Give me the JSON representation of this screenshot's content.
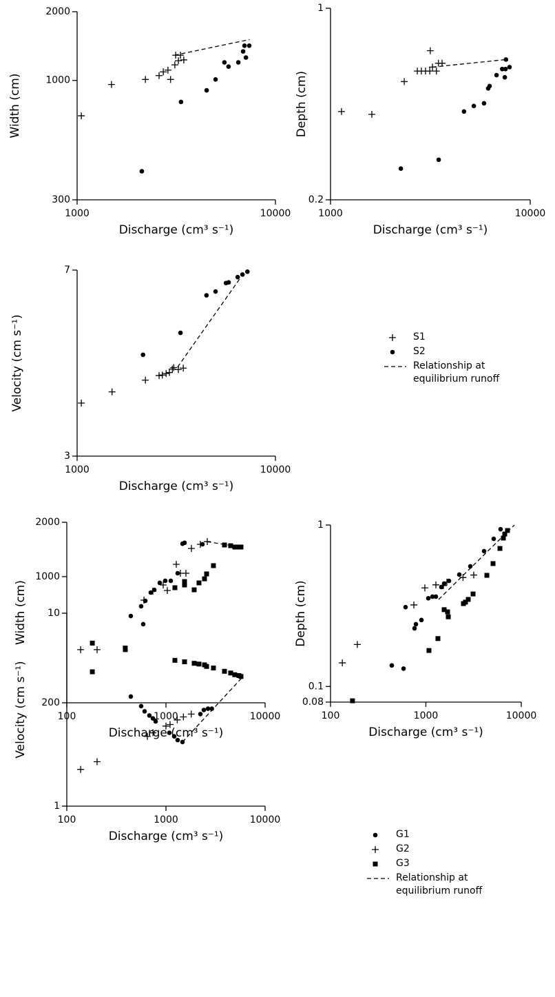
{
  "chart_data": [
    {
      "type": "scatter",
      "x_label": "Discharge (cm³ s⁻¹)",
      "y_label": "Width (cm)",
      "log_x": true,
      "log_y": true,
      "xlim": [
        1000,
        10000
      ],
      "xticks": [
        1000,
        10000
      ],
      "ylim": [
        300,
        2000
      ],
      "yticks": [
        300,
        1000,
        2000
      ],
      "series": [
        {
          "marker": "plus",
          "color": "#000000",
          "x": [
            1050,
            1490,
            2210,
            2590,
            2720,
            2870,
            2960,
            3110,
            3140,
            3240,
            3320,
            3450
          ],
          "values": [
            700,
            960,
            1010,
            1050,
            1090,
            1110,
            1010,
            1170,
            1290,
            1220,
            1290,
            1230
          ]
        },
        {
          "marker": "circle",
          "color": "#000000",
          "x": [
            2120,
            3340,
            4500,
            4990,
            5530,
            5800,
            6500,
            6870,
            6980,
            7100,
            7380
          ],
          "values": [
            400,
            805,
            905,
            1010,
            1200,
            1150,
            1200,
            1340,
            1420,
            1260,
            1420
          ]
        },
        {
          "style": "dashed",
          "color": "#000000",
          "x": [
            3100,
            7400
          ],
          "values": [
            1290,
            1510
          ]
        }
      ]
    },
    {
      "type": "scatter",
      "x_label": "Discharge (cm³ s⁻¹)",
      "y_label": "Depth (cm)",
      "log_x": true,
      "log_y": true,
      "xlim": [
        1000,
        10000
      ],
      "xticks": [
        1000,
        10000
      ],
      "ylim": [
        0.2,
        1
      ],
      "yticks": [
        0.2,
        1
      ],
      "series": [
        {
          "marker": "plus",
          "color": "#000000",
          "x": [
            1135,
            1610,
            2340,
            2720,
            2850,
            2990,
            3140,
            3160,
            3240,
            3390,
            3470,
            3620
          ],
          "values": [
            0.42,
            0.41,
            0.54,
            0.59,
            0.59,
            0.59,
            0.59,
            0.7,
            0.61,
            0.59,
            0.63,
            0.63
          ]
        },
        {
          "marker": "circle",
          "color": "#000000",
          "x": [
            2250,
            3480,
            4660,
            5220,
            5870,
            6160,
            6260,
            6780,
            7240,
            7460,
            7520,
            7880,
            7560
          ],
          "values": [
            0.26,
            0.28,
            0.42,
            0.44,
            0.45,
            0.51,
            0.52,
            0.57,
            0.6,
            0.56,
            0.6,
            0.61,
            0.65
          ]
        },
        {
          "style": "dashed",
          "color": "#000000",
          "x": [
            3240,
            7570
          ],
          "values": [
            0.61,
            0.65
          ]
        }
      ]
    },
    {
      "type": "scatter",
      "x_label": "Discharge (cm³ s⁻¹)",
      "y_label": "Velocity (cm s⁻¹)",
      "log_x": true,
      "log_y": true,
      "xlim": [
        1000,
        10000
      ],
      "xticks": [
        1000,
        10000
      ],
      "ylim": [
        3,
        7
      ],
      "yticks": [
        3,
        7
      ],
      "legend": "right",
      "series": [
        {
          "name": "S1",
          "marker": "plus",
          "color": "#000000",
          "x": [
            1050,
            1500,
            2210,
            2590,
            2690,
            2810,
            2920,
            3020,
            3070,
            3240,
            3430
          ],
          "values": [
            3.82,
            4.02,
            4.24,
            4.33,
            4.34,
            4.37,
            4.39,
            4.46,
            4.49,
            4.45,
            4.48
          ]
        },
        {
          "name": "S2",
          "marker": "circle",
          "color": "#000000",
          "x": [
            2150,
            3320,
            4490,
            4990,
            5630,
            5810,
            6450,
            6820,
            7220
          ],
          "values": [
            4.76,
            5.26,
            6.24,
            6.35,
            6.6,
            6.62,
            6.78,
            6.86,
            6.95
          ]
        },
        {
          "name": "Relationship at equilibrium runoff",
          "style": "dashed",
          "color": "#000000",
          "x": [
            3210,
            6700
          ],
          "values": [
            4.5,
            6.78
          ]
        }
      ]
    },
    {
      "type": "scatter",
      "x_label": "Discharge (cm³ s⁻¹)",
      "y_label": "Width (cm)",
      "log_x": true,
      "log_y": true,
      "xlim": [
        100,
        10000
      ],
      "xticks": [
        100,
        1000,
        10000
      ],
      "ylim": [
        200,
        2000
      ],
      "yticks": [
        200,
        1000,
        2000
      ],
      "series": [
        {
          "marker": "circle",
          "color": "#000000",
          "x": [
            442,
            562,
            590,
            619,
            703,
            762,
            866,
            984,
            1119,
            1312,
            1468,
            1540,
            2335
          ],
          "values": [
            605,
            685,
            545,
            734,
            816,
            845,
            923,
            948,
            948,
            1044,
            1520,
            1540,
            1510
          ]
        },
        {
          "marker": "plus",
          "color": "#000000",
          "x": [
            138,
            202,
            600,
            738,
            938,
            1032,
            1271,
            1399,
            1590,
            1807,
            2223,
            2610
          ],
          "values": [
            394,
            394,
            741,
            830,
            899,
            838,
            1170,
            1044,
            1044,
            1432,
            1510,
            1563
          ]
        },
        {
          "marker": "square",
          "color": "#000000",
          "x": [
            181,
            389,
            1231,
            1540,
            1540,
            1926,
            2154,
            2448,
            2570,
            3013,
            3893,
            4493,
            4946,
            5444,
            5715
          ],
          "values": [
            297,
            394,
            868,
            939,
            899,
            845,
            923,
            972,
            1035,
            1150,
            1497,
            1483,
            1458,
            1458,
            1458
          ]
        },
        {
          "style": "dashed",
          "color": "#000000",
          "x": [
            2600,
            5800
          ],
          "values": [
            1560,
            1460
          ]
        }
      ]
    },
    {
      "type": "scatter",
      "x_label": "Discharge (cm³ s⁻¹)",
      "y_label": "Depth (cm)",
      "log_x": true,
      "log_y": true,
      "xlim": [
        100,
        10000
      ],
      "xticks": [
        100,
        1000,
        10000
      ],
      "ylim": [
        0.08,
        1
      ],
      "yticks": [
        0.08,
        0.1,
        1
      ],
      "series": [
        {
          "marker": "circle",
          "color": "#000000",
          "x": [
            439,
            583,
            612,
            760,
            786,
            898,
            1060,
            1172,
            1273,
            1453,
            1554,
            1745,
            2240,
            2922,
            4075,
            5140,
            6070
          ],
          "values": [
            0.135,
            0.129,
            0.31,
            0.229,
            0.243,
            0.258,
            0.352,
            0.36,
            0.36,
            0.413,
            0.434,
            0.451,
            0.493,
            0.555,
            0.689,
            0.821,
            0.942
          ]
        },
        {
          "marker": "plus",
          "color": "#000000",
          "x": [
            133,
            191,
            748,
            975,
            1273,
            1528,
            1660,
            2450,
            3175
          ],
          "values": [
            0.14,
            0.182,
            0.32,
            0.408,
            0.426,
            0.421,
            0.443,
            0.473,
            0.49
          ]
        },
        {
          "marker": "square",
          "color": "#000000",
          "x": [
            170,
            1077,
            1337,
            1554,
            1688,
            1717,
            2475,
            2602,
            2780,
            3125,
            4357,
            5060,
            5975,
            6490,
            6710,
            7170
          ],
          "values": [
            0.0815,
            0.167,
            0.198,
            0.299,
            0.29,
            0.27,
            0.326,
            0.333,
            0.346,
            0.374,
            0.488,
            0.577,
            0.716,
            0.83,
            0.879,
            0.925
          ]
        },
        {
          "style": "dashed",
          "color": "#000000",
          "x": [
            1360,
            8470
          ],
          "values": [
            0.346,
            1
          ]
        }
      ]
    },
    {
      "type": "scatter",
      "x_label": "Discharge (cm³ s⁻¹)",
      "y_label": "Velocity (cm s⁻¹)",
      "log_x": true,
      "log_y": true,
      "xlim": [
        100,
        10000
      ],
      "xticks": [
        100,
        1000,
        10000
      ],
      "ylim": [
        1,
        10
      ],
      "yticks": [
        1,
        10
      ],
      "legend": "right",
      "series": [
        {
          "name": "G1",
          "marker": "circle",
          "color": "#000000",
          "x": [
            442,
            562,
            609,
            681,
            738,
            787,
            1083,
            1211,
            1312,
            1468,
            2224,
            2410,
            2654,
            2900
          ],
          "values": [
            3.7,
            3.3,
            3.1,
            2.95,
            2.85,
            2.75,
            2.4,
            2.3,
            2.2,
            2.15,
            3.0,
            3.15,
            3.2,
            3.2
          ]
        },
        {
          "name": "G2",
          "marker": "plus",
          "color": "#000000",
          "x": [
            138,
            202,
            650,
            740,
            1000,
            1100,
            1300,
            1500,
            1800
          ],
          "values": [
            1.55,
            1.7,
            2.3,
            2.4,
            2.6,
            2.65,
            2.8,
            2.9,
            3.0
          ]
        },
        {
          "name": "G3",
          "marker": "square",
          "color": "#000000",
          "x": [
            181,
            389,
            1231,
            1540,
            1926,
            2154,
            2448,
            2570,
            3013,
            3893,
            4493,
            4946,
            5444,
            5715
          ],
          "values": [
            7.0,
            6.6,
            5.7,
            5.6,
            5.5,
            5.45,
            5.4,
            5.3,
            5.2,
            5.0,
            4.9,
            4.8,
            4.75,
            4.7
          ]
        },
        {
          "name": "Relationship at equilibrium runoff",
          "style": "dashed",
          "color": "#000000",
          "x": [
            1468,
            6000
          ],
          "values": [
            2.15,
            4.7
          ]
        }
      ]
    }
  ]
}
